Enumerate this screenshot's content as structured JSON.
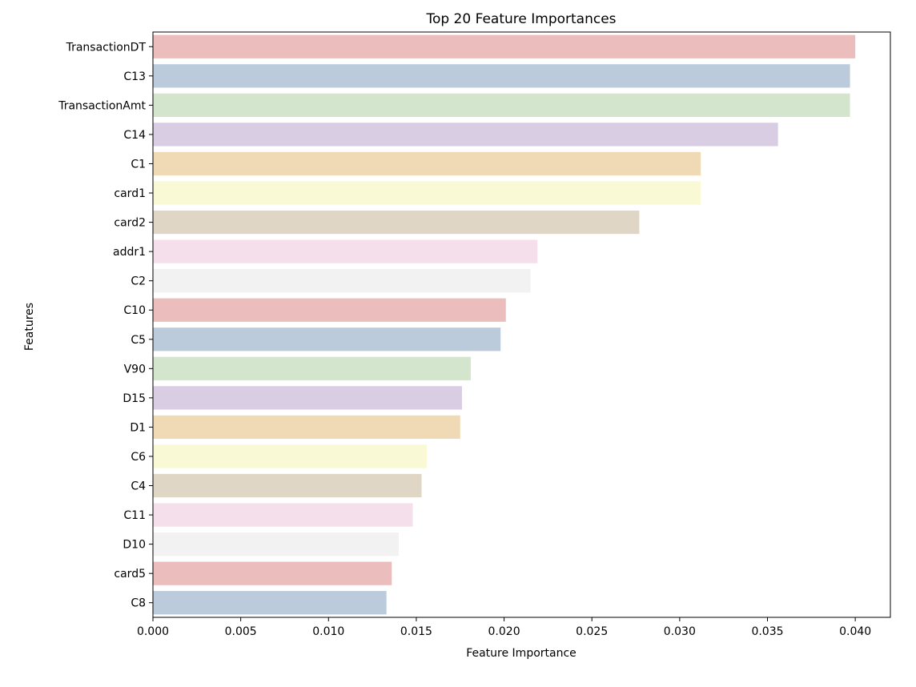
{
  "chart_data": {
    "type": "bar",
    "orientation": "horizontal",
    "title": "Top 20 Feature Importances",
    "xlabel": "Feature Importance",
    "ylabel": "Features",
    "xlim": [
      0,
      0.042
    ],
    "xticks": [
      "0.000",
      "0.005",
      "0.010",
      "0.015",
      "0.020",
      "0.025",
      "0.030",
      "0.035",
      "0.040"
    ],
    "grid": false,
    "categories": [
      "TransactionDT",
      "C13",
      "TransactionAmt",
      "C14",
      "C1",
      "card1",
      "card2",
      "addr1",
      "C2",
      "C10",
      "C5",
      "V90",
      "D15",
      "D1",
      "C6",
      "C4",
      "C11",
      "D10",
      "card5",
      "C8"
    ],
    "values": [
      0.04,
      0.0397,
      0.0397,
      0.0356,
      0.0312,
      0.0312,
      0.0277,
      0.0219,
      0.0215,
      0.0201,
      0.0198,
      0.0181,
      0.0176,
      0.0175,
      0.0156,
      0.0153,
      0.0148,
      0.014,
      0.0136,
      0.0133
    ],
    "colors": [
      "#ebbdbc",
      "#bbcbdc",
      "#d3e6cd",
      "#d8cde2",
      "#f0d9b5",
      "#f9f9d6",
      "#dfd6c5",
      "#f4dfeb",
      "#f2f2f2",
      "#ebbdbc",
      "#bbcbdc",
      "#d3e6cd",
      "#d8cde2",
      "#f0d9b5",
      "#f9f9d6",
      "#dfd6c5",
      "#f4dfeb",
      "#f2f2f2",
      "#ebbdbc",
      "#bbcbdc"
    ]
  }
}
